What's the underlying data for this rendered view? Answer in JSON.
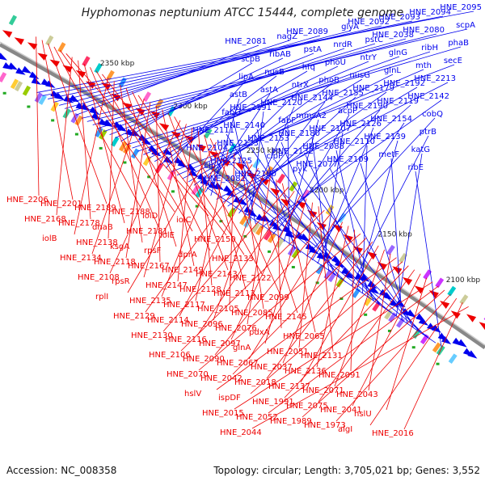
{
  "title": "Hyphomonas neptunium ATCC 15444, complete genome",
  "accession": "Accession: NC_008358",
  "stats": "Topology: circular; Length: 3,705,021 bp; Genes: 3,552",
  "colors": {
    "forward": "#0000ee",
    "reverse": "#ee0000",
    "backbone": "#777777",
    "tick": "#22aa22"
  },
  "kbp_ticks": [
    "2350 kbp",
    "2300 kbp",
    "2250 kbp",
    "2200 kbp",
    "2150 kbp",
    "2100 kbp"
  ],
  "forward_labels": [
    "HNE_2095",
    "HNE_2094",
    "HNE_2093",
    "HNE_2092",
    "glyA",
    "HNE_2089",
    "nagZ",
    "HNE_2081",
    "scpA",
    "HNE_2080",
    "HNE_2038",
    "pstC",
    "nrdR",
    "pstA",
    "ribAB",
    "scpB",
    "phaB",
    "ribH",
    "glnG",
    "ntrY",
    "phoU",
    "hfq",
    "nusB",
    "lipA",
    "secE",
    "mth",
    "glnL",
    "nusG",
    "phoB",
    "ntrX",
    "astA",
    "astB",
    "HNE_2213",
    "HNE_2192",
    "HNE_2179",
    "HNE_2155",
    "HNE_2144",
    "HNE_2120",
    "HNE_2191",
    "fabG",
    "HNE_2142",
    "HNE_2119",
    "HNE_2190",
    "acpP",
    "mmsA2",
    "fabF",
    "HNE_2140",
    "HNE_2111",
    "cobQ",
    "HNE_2154",
    "HNE_2126",
    "HNE_2107",
    "HNE_2180",
    "HNE_2153",
    "HNE_2123",
    "HNE_2104",
    "ptrB",
    "HNE_2139",
    "HNE_2110",
    "HNE_2088",
    "HNE_2132",
    "clpP",
    "HNE_2125",
    "clpX",
    "katG",
    "metF",
    "HNE_2109",
    "HNE_2077",
    "pyk",
    "HNE_2100",
    "HNE_2082",
    "tig",
    "ribE"
  ],
  "reverse_labels": [
    "HNE_2206",
    "HNE_2201",
    "HNE_2189",
    "HNE_2188",
    "iolD",
    "iolC",
    "HNE_2168",
    "HNE_2178",
    "dnaB",
    "HNE_2181",
    "iolE",
    "HNE_2150",
    "iolB",
    "HNE_2138",
    "ksgA",
    "rpsF",
    "dprA",
    "HNE_2133",
    "HNE_2134",
    "HNE_2118",
    "HNE_2167",
    "HNE_2149",
    "HNE_2143",
    "HNE_2122",
    "HNE_2108",
    "rpsR",
    "HNE_2147",
    "HNE_2128",
    "HNE_2113",
    "HNE_2099",
    "rplI",
    "HNE_2135",
    "HNE_2117",
    "HNE_2105",
    "HNE_2085",
    "HNE_2145",
    "HNE_2129",
    "HNE_2114",
    "HNE_2096",
    "HNE_2076",
    "pdxA",
    "HNE_2065",
    "HNE_2130",
    "HNE_2116",
    "HNE_2097",
    "glnA",
    "HNE_2051",
    "HNE_2131",
    "HNE_2106",
    "HNE_2090",
    "HNE_2067",
    "HNE_2037",
    "HNE_2136",
    "HNE_2091",
    "HNE_2070",
    "HNE_2042",
    "HNE_2018",
    "HNE_2137",
    "HNE_2071",
    "HNE_2043",
    "hslV",
    "ispDF",
    "HNE_1991",
    "HNE_2075",
    "HNE_2041",
    "hslU",
    "HNE_2015",
    "HNE_2052",
    "HNE_1989",
    "HNE_1973",
    "algI",
    "HNE_2016",
    "HNE_2044"
  ]
}
